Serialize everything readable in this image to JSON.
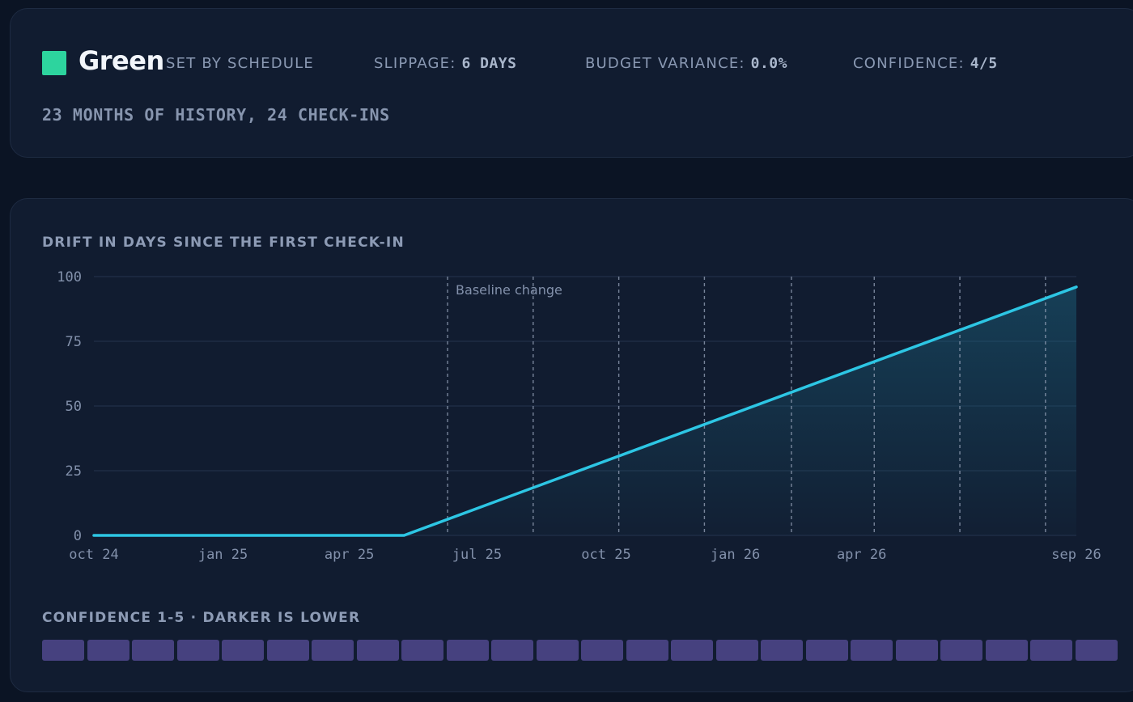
{
  "status": {
    "label": "Green",
    "color": "#2dd49e",
    "source": "SET BY SCHEDULE",
    "slippage_label": "SLIPPAGE:",
    "slippage_value": "6 DAYS",
    "budget_label": "BUDGET VARIANCE:",
    "budget_value": "0.0%",
    "confidence_label": "CONFIDENCE:",
    "confidence_value": "4/5",
    "history": "23 MONTHS OF HISTORY, 24 CHECK-INS"
  },
  "chart_title": "DRIFT IN DAYS SINCE THE FIRST CHECK-IN",
  "chart_data": {
    "type": "area",
    "x_ticks": [
      "oct 24",
      "jan 25",
      "apr 25",
      "jul 25",
      "oct 25",
      "jan 26",
      "apr 26",
      "sep 26"
    ],
    "x_tick_dates": [
      "2024-10-01",
      "2025-01-01",
      "2025-04-01",
      "2025-07-01",
      "2025-10-01",
      "2026-01-01",
      "2026-04-01",
      "2026-09-01"
    ],
    "xlim": [
      "2024-10-01",
      "2026-09-01"
    ],
    "y_ticks": [
      0,
      25,
      50,
      75,
      100
    ],
    "ylim": [
      0,
      100
    ],
    "grid": "horizontal",
    "series": [
      {
        "color": "#2dc6e4",
        "points": [
          {
            "x": "2024-10-01",
            "y": 0
          },
          {
            "x": "2025-05-10",
            "y": 0
          },
          {
            "x": "2026-09-01",
            "y": 96
          }
        ]
      }
    ],
    "markers": {
      "dates": [
        "2025-06-10",
        "2025-08-10",
        "2025-10-10",
        "2025-12-10",
        "2026-02-10",
        "2026-04-10",
        "2026-06-10",
        "2026-08-10"
      ],
      "annotation": "Baseline change"
    }
  },
  "confidence": {
    "title": "CONFIDENCE 1-5 · DARKER IS LOWER",
    "color": "#4e4689",
    "values": [
      4,
      4,
      4,
      4,
      4,
      4,
      4,
      4,
      4,
      4,
      4,
      4,
      4,
      4,
      4,
      4,
      4,
      4,
      4,
      4,
      4,
      4,
      4,
      4
    ]
  }
}
